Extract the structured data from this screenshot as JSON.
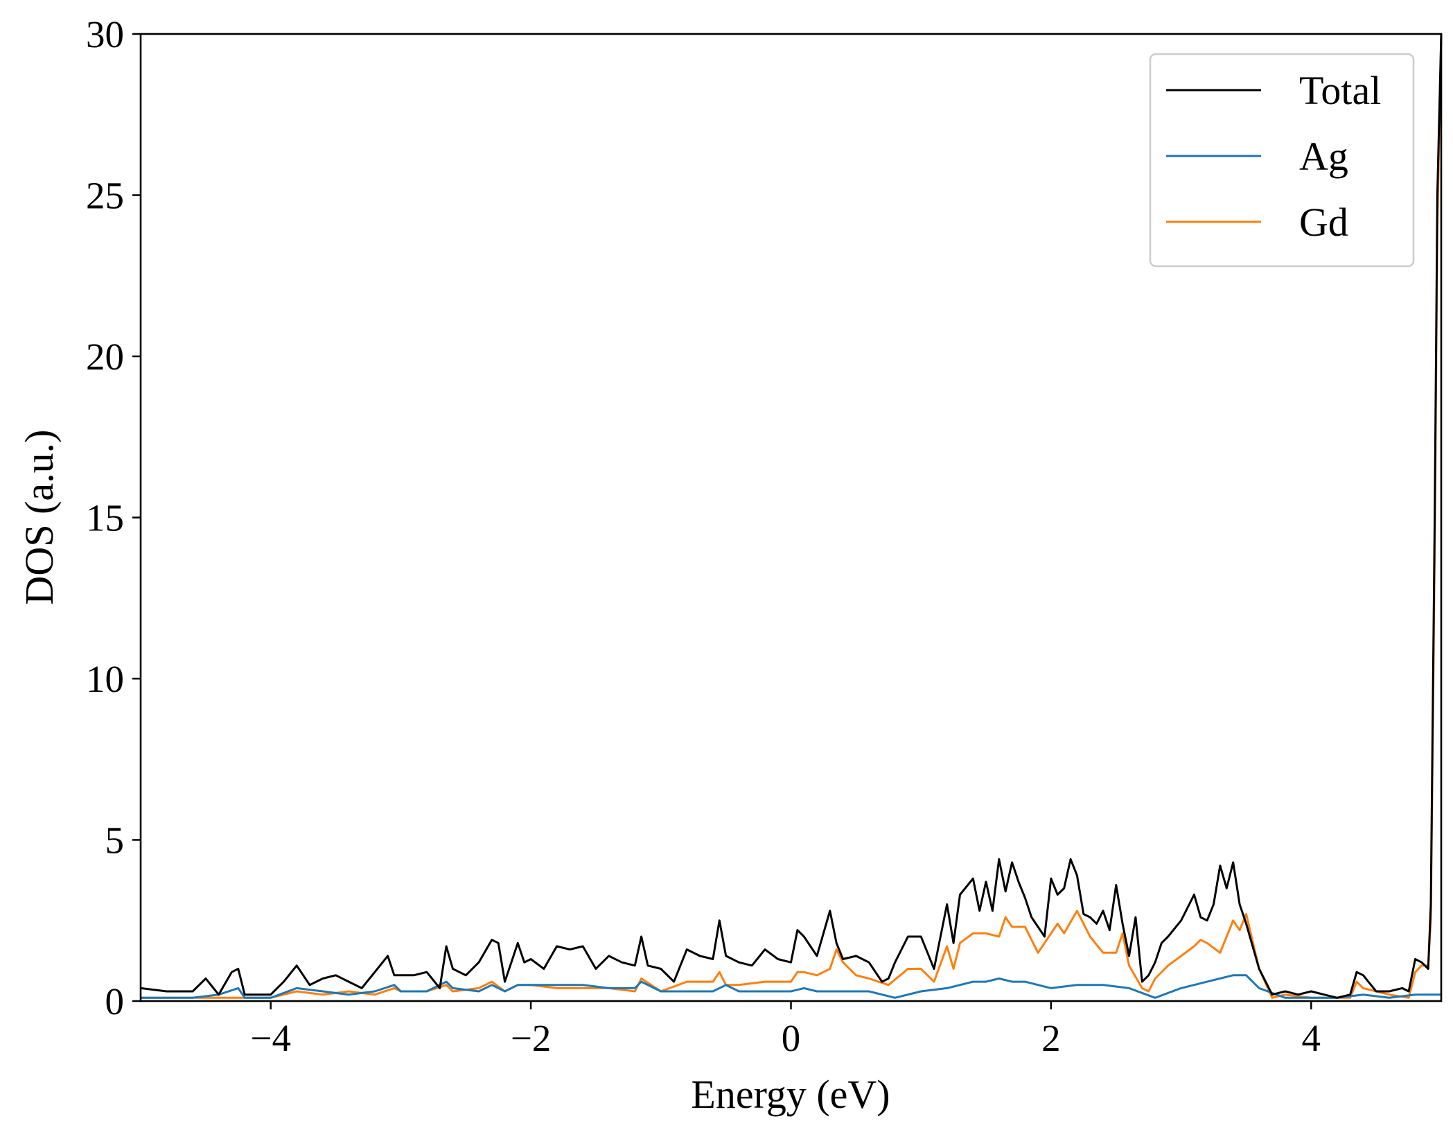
{
  "chart_data": {
    "type": "line",
    "xlabel": "Energy (eV)",
    "ylabel": "DOS (a.u.)",
    "xlim": [
      -5,
      5
    ],
    "ylim": [
      0,
      30
    ],
    "xticks": [
      {
        "value": -4,
        "label": "−4"
      },
      {
        "value": -2,
        "label": "−2"
      },
      {
        "value": 0,
        "label": "0"
      },
      {
        "value": 2,
        "label": "2"
      },
      {
        "value": 4,
        "label": "4"
      }
    ],
    "yticks": [
      {
        "value": 0,
        "label": "0"
      },
      {
        "value": 5,
        "label": "5"
      },
      {
        "value": 10,
        "label": "10"
      },
      {
        "value": 15,
        "label": "15"
      },
      {
        "value": 20,
        "label": "20"
      },
      {
        "value": 25,
        "label": "25"
      },
      {
        "value": 30,
        "label": "30"
      }
    ],
    "grid": false,
    "legend_position": "top-right",
    "series": [
      {
        "name": "Total",
        "color": "#000000",
        "x": [
          -5.0,
          -4.8,
          -4.6,
          -4.5,
          -4.4,
          -4.3,
          -4.25,
          -4.2,
          -4.1,
          -4.0,
          -3.9,
          -3.8,
          -3.7,
          -3.6,
          -3.5,
          -3.4,
          -3.3,
          -3.2,
          -3.1,
          -3.05,
          -3.0,
          -2.9,
          -2.8,
          -2.7,
          -2.65,
          -2.6,
          -2.5,
          -2.4,
          -2.3,
          -2.25,
          -2.2,
          -2.1,
          -2.05,
          -2.0,
          -1.9,
          -1.8,
          -1.7,
          -1.6,
          -1.5,
          -1.4,
          -1.3,
          -1.2,
          -1.15,
          -1.1,
          -1.0,
          -0.9,
          -0.8,
          -0.7,
          -0.6,
          -0.55,
          -0.5,
          -0.4,
          -0.3,
          -0.2,
          -0.1,
          0.0,
          0.05,
          0.1,
          0.2,
          0.3,
          0.35,
          0.4,
          0.5,
          0.6,
          0.7,
          0.75,
          0.8,
          0.9,
          1.0,
          1.1,
          1.2,
          1.25,
          1.3,
          1.4,
          1.45,
          1.5,
          1.55,
          1.6,
          1.65,
          1.7,
          1.75,
          1.8,
          1.85,
          1.9,
          1.95,
          2.0,
          2.05,
          2.1,
          2.15,
          2.2,
          2.25,
          2.3,
          2.35,
          2.4,
          2.45,
          2.5,
          2.55,
          2.6,
          2.65,
          2.7,
          2.75,
          2.8,
          2.85,
          2.9,
          3.0,
          3.1,
          3.15,
          3.2,
          3.25,
          3.3,
          3.35,
          3.4,
          3.45,
          3.5,
          3.6,
          3.7,
          3.8,
          3.9,
          4.0,
          4.1,
          4.2,
          4.3,
          4.35,
          4.4,
          4.5,
          4.6,
          4.7,
          4.75,
          4.8,
          4.85,
          4.9,
          4.92,
          4.95,
          4.97,
          5.0
        ],
        "y": [
          0.4,
          0.3,
          0.3,
          0.7,
          0.2,
          0.9,
          1.0,
          0.2,
          0.2,
          0.2,
          0.6,
          1.1,
          0.5,
          0.7,
          0.8,
          0.6,
          0.4,
          0.9,
          1.4,
          0.8,
          0.8,
          0.8,
          0.9,
          0.4,
          1.7,
          1.0,
          0.8,
          1.2,
          1.9,
          1.8,
          0.6,
          1.8,
          1.2,
          1.3,
          1.0,
          1.7,
          1.6,
          1.7,
          1.0,
          1.4,
          1.2,
          1.1,
          2.0,
          1.1,
          1.0,
          0.6,
          1.6,
          1.4,
          1.3,
          2.5,
          1.4,
          1.2,
          1.1,
          1.6,
          1.3,
          1.2,
          2.2,
          2.0,
          1.4,
          2.8,
          1.8,
          1.3,
          1.4,
          1.2,
          0.6,
          0.7,
          1.2,
          2.0,
          2.0,
          1.0,
          3.0,
          1.8,
          3.3,
          3.8,
          2.8,
          3.7,
          2.8,
          4.4,
          3.4,
          4.3,
          3.7,
          3.2,
          2.6,
          2.3,
          2.0,
          3.8,
          3.3,
          3.5,
          4.4,
          3.9,
          2.7,
          2.6,
          2.4,
          2.8,
          2.2,
          3.6,
          2.4,
          1.4,
          2.6,
          0.6,
          0.8,
          1.2,
          1.8,
          2.0,
          2.5,
          3.3,
          2.6,
          2.5,
          3.0,
          4.2,
          3.5,
          4.3,
          3.0,
          2.4,
          1.0,
          0.2,
          0.3,
          0.2,
          0.3,
          0.2,
          0.1,
          0.2,
          0.9,
          0.8,
          0.3,
          0.3,
          0.4,
          0.3,
          1.3,
          1.2,
          1.0,
          3.0,
          15.0,
          25.0,
          30.0
        ]
      },
      {
        "name": "Ag",
        "color": "#1f77b4",
        "x": [
          -5.0,
          -4.8,
          -4.6,
          -4.4,
          -4.25,
          -4.2,
          -4.0,
          -3.8,
          -3.6,
          -3.4,
          -3.2,
          -3.05,
          -3.0,
          -2.8,
          -2.65,
          -2.6,
          -2.4,
          -2.3,
          -2.2,
          -2.1,
          -2.0,
          -1.8,
          -1.6,
          -1.4,
          -1.2,
          -1.15,
          -1.0,
          -0.8,
          -0.6,
          -0.5,
          -0.4,
          -0.2,
          0.0,
          0.1,
          0.2,
          0.4,
          0.6,
          0.8,
          1.0,
          1.2,
          1.4,
          1.5,
          1.6,
          1.7,
          1.8,
          2.0,
          2.2,
          2.4,
          2.6,
          2.8,
          3.0,
          3.2,
          3.4,
          3.5,
          3.6,
          3.8,
          4.0,
          4.2,
          4.4,
          4.6,
          4.8,
          5.0
        ],
        "y": [
          0.1,
          0.1,
          0.1,
          0.2,
          0.4,
          0.1,
          0.1,
          0.4,
          0.3,
          0.2,
          0.3,
          0.5,
          0.3,
          0.3,
          0.6,
          0.4,
          0.3,
          0.5,
          0.3,
          0.5,
          0.5,
          0.5,
          0.5,
          0.4,
          0.4,
          0.6,
          0.3,
          0.3,
          0.3,
          0.5,
          0.3,
          0.3,
          0.3,
          0.4,
          0.3,
          0.3,
          0.3,
          0.1,
          0.3,
          0.4,
          0.6,
          0.6,
          0.7,
          0.6,
          0.6,
          0.4,
          0.5,
          0.5,
          0.4,
          0.1,
          0.4,
          0.6,
          0.8,
          0.8,
          0.4,
          0.1,
          0.1,
          0.1,
          0.2,
          0.1,
          0.2,
          0.2
        ]
      },
      {
        "name": "Gd",
        "color": "#ff7f0e",
        "x": [
          -5.0,
          -4.8,
          -4.6,
          -4.4,
          -4.2,
          -4.0,
          -3.8,
          -3.6,
          -3.4,
          -3.2,
          -3.05,
          -3.0,
          -2.8,
          -2.65,
          -2.6,
          -2.4,
          -2.3,
          -2.2,
          -2.1,
          -2.0,
          -1.8,
          -1.6,
          -1.4,
          -1.2,
          -1.15,
          -1.0,
          -0.8,
          -0.6,
          -0.55,
          -0.5,
          -0.4,
          -0.2,
          0.0,
          0.05,
          0.1,
          0.2,
          0.3,
          0.35,
          0.4,
          0.5,
          0.6,
          0.75,
          0.9,
          1.0,
          1.1,
          1.2,
          1.25,
          1.3,
          1.4,
          1.5,
          1.6,
          1.65,
          1.7,
          1.8,
          1.9,
          2.0,
          2.05,
          2.1,
          2.2,
          2.3,
          2.4,
          2.5,
          2.55,
          2.6,
          2.7,
          2.75,
          2.8,
          2.9,
          3.0,
          3.1,
          3.15,
          3.2,
          3.3,
          3.4,
          3.45,
          3.5,
          3.6,
          3.7,
          3.8,
          4.0,
          4.2,
          4.3,
          4.35,
          4.4,
          4.6,
          4.75,
          4.8,
          4.85,
          4.9,
          4.92,
          4.95,
          4.97,
          5.0
        ],
        "y": [
          0.1,
          0.1,
          0.1,
          0.1,
          0.1,
          0.1,
          0.3,
          0.2,
          0.3,
          0.2,
          0.4,
          0.3,
          0.3,
          0.5,
          0.3,
          0.4,
          0.6,
          0.3,
          0.5,
          0.5,
          0.4,
          0.4,
          0.4,
          0.3,
          0.7,
          0.3,
          0.6,
          0.6,
          0.9,
          0.5,
          0.5,
          0.6,
          0.6,
          0.9,
          0.9,
          0.8,
          1.0,
          1.6,
          1.2,
          0.8,
          0.7,
          0.5,
          1.0,
          1.0,
          0.6,
          1.7,
          1.0,
          1.8,
          2.1,
          2.1,
          2.0,
          2.6,
          2.3,
          2.3,
          1.5,
          2.1,
          2.4,
          2.1,
          2.8,
          2.0,
          1.5,
          1.5,
          2.1,
          1.1,
          0.4,
          0.3,
          0.7,
          1.1,
          1.4,
          1.7,
          1.9,
          1.8,
          1.5,
          2.5,
          2.2,
          2.7,
          1.0,
          0.1,
          0.2,
          0.1,
          0.1,
          0.1,
          0.6,
          0.4,
          0.2,
          0.1,
          0.9,
          1.1,
          1.1,
          2.5,
          14.0,
          24.0,
          30.0
        ]
      }
    ]
  }
}
